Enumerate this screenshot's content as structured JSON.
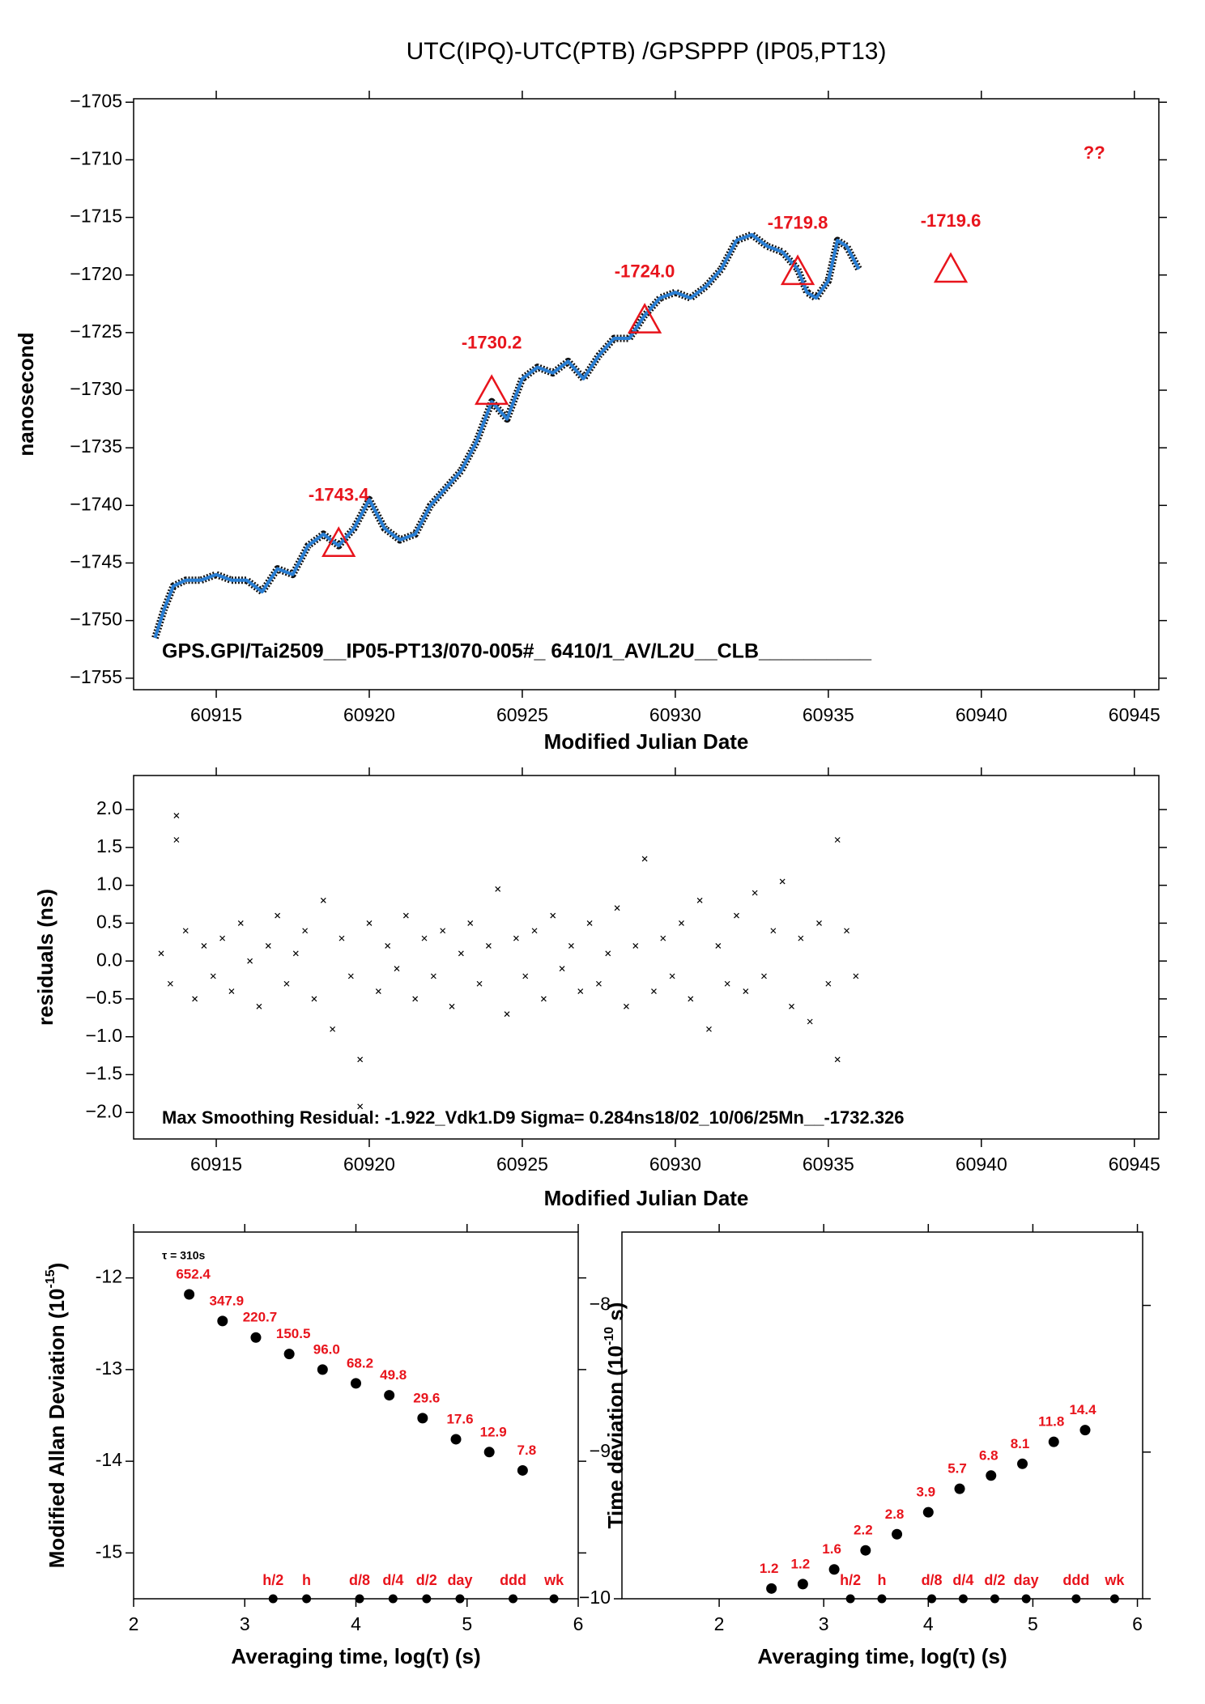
{
  "chart_data": [
    {
      "type": "line",
      "title": "UTC(IPQ)-UTC(PTB)  /GPSPPP  (IP05,PT13)",
      "x_label": "Modified Julian Date",
      "y_label": "nanosecond",
      "xlim": [
        60912.3,
        60945.8
      ],
      "ylim": [
        -1756,
        -1704.7
      ],
      "xticks": [
        60915,
        60920,
        60925,
        60930,
        60935,
        60940,
        60945
      ],
      "yticks": [
        {
          "value": -1705,
          "label": "−1705"
        },
        {
          "value": -1710,
          "label": "−1710"
        },
        {
          "value": -1715,
          "label": "−1715"
        },
        {
          "value": -1720,
          "label": "−1720"
        },
        {
          "value": -1725,
          "label": "−1725"
        },
        {
          "value": -1730,
          "label": "−1730"
        },
        {
          "value": -1735,
          "label": "−1735"
        },
        {
          "value": -1740,
          "label": "−1740"
        },
        {
          "value": -1745,
          "label": "−1745"
        },
        {
          "value": -1750,
          "label": "−1750"
        },
        {
          "value": -1755,
          "label": "−1755"
        }
      ],
      "series": [
        {
          "color": "#2a7fd4",
          "x": [
            60913.0,
            60913.3,
            60913.6,
            60914.0,
            60914.5,
            60915.0,
            60915.5,
            60916.0,
            60916.5,
            60917.0,
            60917.5,
            60918.0,
            60918.5,
            60919.0,
            60919.5,
            60920.0,
            60920.5,
            60921.0,
            60921.5,
            60922.0,
            60922.5,
            60923.0,
            60923.5,
            60924.0,
            60924.5,
            60925.0,
            60925.5,
            60926.0,
            60926.5,
            60927.0,
            60927.5,
            60928.0,
            60928.5,
            60929.0,
            60929.5,
            60930.0,
            60930.5,
            60931.0,
            60931.5,
            60932.0,
            60932.5,
            60933.0,
            60933.5,
            60934.0,
            60934.3,
            60934.6,
            60935.0,
            60935.3,
            60935.6,
            60936.0
          ],
          "values": [
            -1751.5,
            -1749,
            -1747,
            -1746.5,
            -1746.5,
            -1746,
            -1746.5,
            -1746.5,
            -1747.5,
            -1745.5,
            -1746,
            -1743.5,
            -1742.5,
            -1743.5,
            -1742,
            -1739.5,
            -1742,
            -1743,
            -1742.5,
            -1740,
            -1738.5,
            -1737,
            -1734.5,
            -1731,
            -1732.5,
            -1729,
            -1728,
            -1728.5,
            -1727.5,
            -1729,
            -1727,
            -1725.5,
            -1725.5,
            -1723.5,
            -1722,
            -1721.5,
            -1722,
            -1721,
            -1719.5,
            -1717,
            -1716.5,
            -1717.5,
            -1718,
            -1719.5,
            -1721.5,
            -1722,
            -1720.5,
            -1717,
            -1717.5,
            -1719.5
          ]
        }
      ],
      "markers": {
        "color": "#e8141c",
        "x": [
          60919,
          60924,
          60929,
          60934,
          60939
        ],
        "values": [
          -1743.4,
          -1730.2,
          -1724.0,
          -1719.8,
          -1719.6
        ],
        "value_labels": [
          "-1743.4",
          "-1730.2",
          "-1724.0",
          "-1719.8",
          "-1719.6"
        ]
      },
      "note": "??",
      "annotation": "GPS.GPI/Tai2509__IP05-PT13/070-005#_  6410/1_AV/L2U__CLB__________"
    },
    {
      "type": "scatter",
      "x_label": "Modified Julian Date",
      "y_label": "residuals (ns)",
      "xlim": [
        60912.3,
        60945.8
      ],
      "ylim": [
        -2.35,
        2.45
      ],
      "xticks": [
        60915,
        60920,
        60925,
        60930,
        60935,
        60940,
        60945
      ],
      "yticks": [
        {
          "value": 2.0,
          "label": "2.0"
        },
        {
          "value": 1.5,
          "label": "1.5"
        },
        {
          "value": 1.0,
          "label": "1.0"
        },
        {
          "value": 0.5,
          "label": "0.5"
        },
        {
          "value": 0.0,
          "label": "0.0"
        },
        {
          "value": -0.5,
          "label": "−0.5"
        },
        {
          "value": -1.0,
          "label": "−1.0"
        },
        {
          "value": -1.5,
          "label": "−1.5"
        },
        {
          "value": -2.0,
          "label": "−2.0"
        }
      ],
      "color": "#000000",
      "x": [
        60913.2,
        60913.5,
        60913.7,
        60913.7,
        60914.0,
        60914.3,
        60914.6,
        60914.9,
        60915.2,
        60915.5,
        60915.8,
        60916.1,
        60916.4,
        60916.7,
        60917.0,
        60917.3,
        60917.6,
        60917.9,
        60918.2,
        60918.5,
        60918.8,
        60919.1,
        60919.4,
        60919.7,
        60919.7,
        60920.0,
        60920.3,
        60920.6,
        60920.9,
        60921.2,
        60921.5,
        60921.8,
        60922.1,
        60922.4,
        60922.7,
        60923.0,
        60923.3,
        60923.6,
        60923.9,
        60924.2,
        60924.5,
        60924.8,
        60925.1,
        60925.4,
        60925.7,
        60926.0,
        60926.3,
        60926.6,
        60926.9,
        60927.2,
        60927.5,
        60927.8,
        60928.1,
        60928.4,
        60928.7,
        60929.0,
        60929.3,
        60929.6,
        60929.9,
        60930.2,
        60930.5,
        60930.8,
        60931.1,
        60931.4,
        60931.7,
        60932.0,
        60932.3,
        60932.6,
        60932.9,
        60933.2,
        60933.5,
        60933.8,
        60934.1,
        60934.4,
        60934.7,
        60935.0,
        60935.3,
        60935.3,
        60935.6,
        60935.9
      ],
      "values": [
        0.1,
        -0.3,
        1.92,
        1.6,
        0.4,
        -0.5,
        0.2,
        -0.2,
        0.3,
        -0.4,
        0.5,
        0.0,
        -0.6,
        0.2,
        0.6,
        -0.3,
        0.1,
        0.4,
        -0.5,
        0.8,
        -0.9,
        0.3,
        -0.2,
        -1.3,
        -1.92,
        0.5,
        -0.4,
        0.2,
        -0.1,
        0.6,
        -0.5,
        0.3,
        -0.2,
        0.4,
        -0.6,
        0.1,
        0.5,
        -0.3,
        0.2,
        0.95,
        -0.7,
        0.3,
        -0.2,
        0.4,
        -0.5,
        0.6,
        -0.1,
        0.2,
        -0.4,
        0.5,
        -0.3,
        0.1,
        0.7,
        -0.6,
        0.2,
        1.35,
        -0.4,
        0.3,
        -0.2,
        0.5,
        -0.5,
        0.8,
        -0.9,
        0.2,
        -0.3,
        0.6,
        -0.4,
        0.9,
        -0.2,
        0.4,
        1.05,
        -0.6,
        0.3,
        -0.8,
        0.5,
        -0.3,
        1.6,
        -1.3,
        0.4,
        -0.2
      ],
      "annotation": "Max Smoothing Residual: -1.922_Vdk1.D9  Sigma= 0.284ns18/02_10/06/25Mn__-1732.326"
    },
    {
      "type": "dots",
      "x_label": "Averaging time, log(τ) (s)",
      "y_label": {
        "text": "Modified Allan Deviation (10",
        "sup": "-15",
        "end": ")"
      },
      "xlim": [
        2,
        6
      ],
      "ylim": [
        -15.5,
        -11.5
      ],
      "xticks": [
        2,
        3,
        4,
        5,
        6
      ],
      "yticks": [
        -12,
        -13,
        -14,
        -15
      ],
      "color": "#000000",
      "label_color": "#e8141c",
      "x": [
        2.5,
        2.8,
        3.1,
        3.4,
        3.7,
        4.0,
        4.3,
        4.6,
        4.9,
        5.2,
        5.5
      ],
      "values": [
        -12.18,
        -12.47,
        -12.65,
        -12.83,
        -13.0,
        -13.15,
        -13.28,
        -13.53,
        -13.76,
        -13.9,
        -14.1
      ],
      "value_labels": [
        "652.4",
        "347.9",
        "220.7",
        "150.5",
        "96.0",
        "68.2",
        "49.8",
        "29.6",
        "17.6",
        "12.9",
        "7.8"
      ],
      "periods": {
        "x": [
          3.255,
          3.556,
          4.033,
          4.334,
          4.636,
          4.936,
          5.414,
          5.782
        ],
        "labels": [
          "h/2",
          "h",
          "d/8",
          "d/4",
          "d/2",
          "day",
          "ddd",
          "wk"
        ]
      },
      "note": "τ = 310s"
    },
    {
      "type": "dots",
      "x_label": "Averaging time, log(τ) (s)",
      "y_label": {
        "text": "Time deviation (10",
        "sup": "-10",
        "end": " s)"
      },
      "xlim": [
        1.07,
        6.05
      ],
      "ylim": [
        -10,
        -7.5
      ],
      "xticks": [
        2,
        3,
        4,
        5,
        6
      ],
      "yticks": [
        {
          "value": -8,
          "label": "−8"
        },
        {
          "value": -9,
          "label": "−9"
        },
        {
          "value": -10,
          "label": "−10"
        }
      ],
      "color": "#000000",
      "label_color": "#e8141c",
      "x": [
        2.5,
        2.8,
        3.1,
        3.4,
        3.7,
        4.0,
        4.3,
        4.6,
        4.9,
        5.2,
        5.5
      ],
      "values": [
        -9.93,
        -9.9,
        -9.8,
        -9.67,
        -9.56,
        -9.41,
        -9.25,
        -9.16,
        -9.08,
        -8.93,
        -8.85
      ],
      "value_labels": [
        "1.2",
        "1.2",
        "1.6",
        "2.2",
        "2.8",
        "3.9",
        "5.7",
        "6.8",
        "8.1",
        "11.8",
        "14.4"
      ],
      "periods": {
        "x": [
          3.255,
          3.556,
          4.033,
          4.334,
          4.636,
          4.936,
          5.414,
          5.782
        ],
        "labels": [
          "h/2",
          "h",
          "d/8",
          "d/4",
          "d/2",
          "day",
          "ddd",
          "wk"
        ]
      }
    }
  ]
}
